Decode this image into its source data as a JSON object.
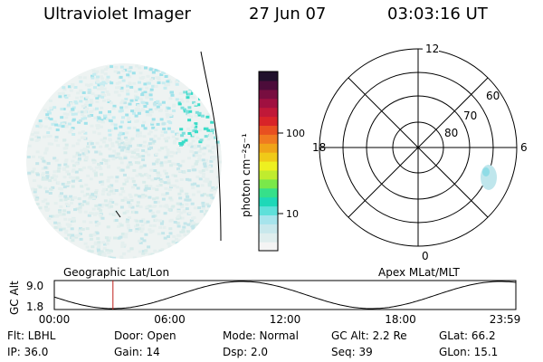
{
  "header": {
    "instrument": "Ultraviolet Imager",
    "date": "27 Jun 07",
    "time": "03:03:16 UT"
  },
  "colorbar": {
    "unit_label": "photon cm⁻²s⁻¹",
    "ticks": [
      "100",
      "10"
    ],
    "colors": [
      "#f4f4f4",
      "#dfeeee",
      "#c8e8ec",
      "#a6e4ec",
      "#5fe0da",
      "#1ed8b8",
      "#36e08a",
      "#7ae84a",
      "#c0ec2e",
      "#eef020",
      "#f0ca18",
      "#f0a418",
      "#f07a20",
      "#e85020",
      "#d82428",
      "#c01838",
      "#a01040",
      "#780e40",
      "#4c0c3a",
      "#20102c"
    ]
  },
  "polar_plot": {
    "mlt_labels": [
      "12",
      "18",
      "6",
      "0"
    ],
    "mlat_labels": [
      "60",
      "70",
      "80"
    ]
  },
  "altitude_panel": {
    "left_label": "Geographic Lat/Lon",
    "right_label": "Apex MLat/MLT",
    "axis_label": "GC Alt",
    "ytick_top": "9.0",
    "ytick_bottom": "1.8",
    "time_ticks": [
      "00:00",
      "06:00",
      "12:00",
      "18:00",
      "23:59"
    ],
    "current_time_fraction": 0.127
  },
  "footer": {
    "filter": "Flt: LBHL",
    "ip": "IP: 36.0",
    "door": "Door: Open",
    "gain": "Gain: 14",
    "mode": "Mode: Normal",
    "dsp": "Dsp:    2.0",
    "gc_alt": "GC Alt: 2.2 Re",
    "seq": "Seq: 39",
    "glat": "GLat:   66.2",
    "glon": "GLon:   15.1"
  }
}
